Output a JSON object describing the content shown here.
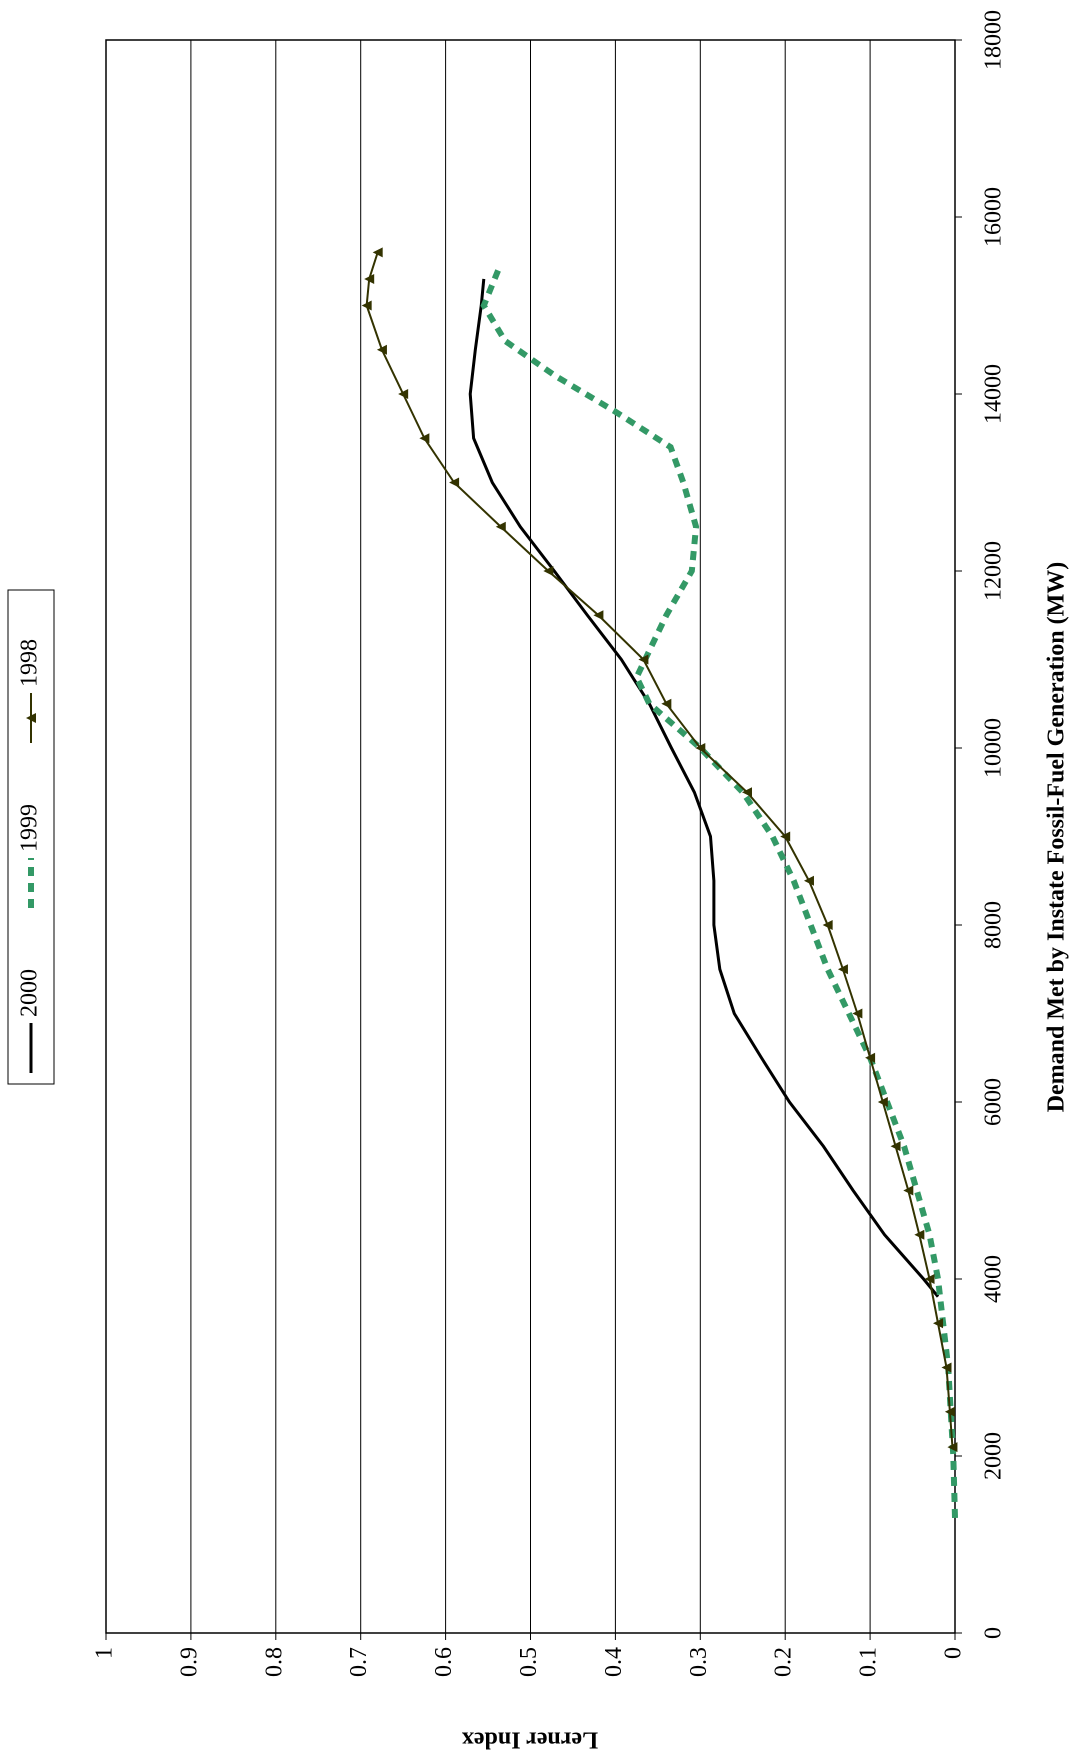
{
  "chart_data": {
    "type": "line",
    "x_label": "Demand Met by Instate Fossil-Fuel Generation (MW)",
    "y_label": "Lerner Index",
    "xlim": [
      0,
      18000
    ],
    "xticks": [
      0,
      2000,
      4000,
      6000,
      8000,
      10000,
      12000,
      14000,
      16000,
      18000
    ],
    "ylim": [
      0,
      1
    ],
    "yticks": [
      0,
      0.1,
      0.2,
      0.3,
      0.4,
      0.5,
      0.6,
      0.7,
      0.8,
      0.9,
      1
    ],
    "grid": true,
    "series": [
      {
        "name": "2000",
        "color": "#000000",
        "style": "solid",
        "marker": "none",
        "x": [
          3800,
          4000,
          4500,
          5000,
          5500,
          6000,
          6500,
          7000,
          7500,
          8000,
          8500,
          9000,
          9500,
          10000,
          10500,
          11000,
          11500,
          12000,
          12500,
          13000,
          13500,
          14000,
          14500,
          15000,
          15300
        ],
        "values": [
          0.02,
          0.037,
          0.083,
          0.12,
          0.155,
          0.195,
          0.228,
          0.26,
          0.277,
          0.284,
          0.284,
          0.288,
          0.307,
          0.334,
          0.36,
          0.393,
          0.433,
          0.472,
          0.512,
          0.545,
          0.567,
          0.571,
          0.565,
          0.558,
          0.555
        ]
      },
      {
        "name": "1999",
        "color": "#339966",
        "style": "dashed",
        "marker": "none",
        "x": [
          1300,
          2000,
          3000,
          4000,
          4500,
          5000,
          5500,
          6000,
          6500,
          7000,
          7500,
          8000,
          8500,
          9000,
          9500,
          10000,
          10500,
          10800,
          11000,
          11500,
          12000,
          12500,
          13000,
          13400,
          13800,
          14200,
          14600,
          15000,
          15400
        ],
        "values": [
          0,
          0.002,
          0.008,
          0.02,
          0.03,
          0.045,
          0.06,
          0.08,
          0.1,
          0.125,
          0.15,
          0.17,
          0.19,
          0.215,
          0.25,
          0.3,
          0.36,
          0.375,
          0.365,
          0.34,
          0.31,
          0.305,
          0.32,
          0.335,
          0.4,
          0.47,
          0.53,
          0.555,
          0.538
        ]
      },
      {
        "name": "1998",
        "color": "#333300",
        "style": "solid",
        "marker": "triangle",
        "x": [
          2100,
          2500,
          3000,
          3500,
          4000,
          4500,
          5000,
          5500,
          6000,
          6500,
          7000,
          7500,
          8000,
          8500,
          9000,
          9500,
          10000,
          10500,
          11000,
          11500,
          12000,
          12500,
          13000,
          13500,
          14000,
          14500,
          15000,
          15300,
          15600
        ],
        "values": [
          0.003,
          0.006,
          0.01,
          0.02,
          0.03,
          0.042,
          0.055,
          0.07,
          0.085,
          0.1,
          0.115,
          0.132,
          0.15,
          0.172,
          0.2,
          0.245,
          0.3,
          0.34,
          0.367,
          0.42,
          0.479,
          0.535,
          0.59,
          0.625,
          0.65,
          0.675,
          0.693,
          0.69,
          0.68
        ]
      }
    ]
  }
}
